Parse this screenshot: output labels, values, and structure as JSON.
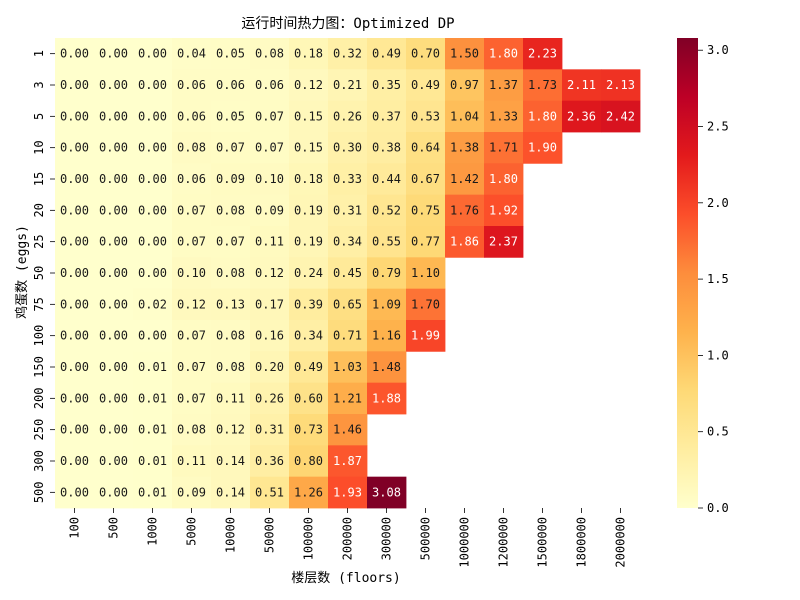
{
  "chart_data": {
    "type": "heatmap",
    "title": "运行时间热力图：Optimized DP",
    "xlabel": "楼层数 (floors)",
    "ylabel": "鸡蛋数 (eggs)",
    "x_categories": [
      "100",
      "500",
      "1000",
      "5000",
      "10000",
      "50000",
      "100000",
      "200000",
      "300000",
      "500000",
      "1000000",
      "1200000",
      "1500000",
      "1800000",
      "2000000"
    ],
    "y_categories": [
      "1",
      "3",
      "5",
      "10",
      "15",
      "20",
      "25",
      "50",
      "75",
      "100",
      "150",
      "200",
      "250",
      "300",
      "500"
    ],
    "values": [
      [
        0.0,
        0.0,
        0.0,
        0.04,
        0.05,
        0.08,
        0.18,
        0.32,
        0.49,
        0.7,
        1.5,
        1.8,
        2.23,
        null,
        null
      ],
      [
        0.0,
        0.0,
        0.0,
        0.06,
        0.06,
        0.06,
        0.12,
        0.21,
        0.35,
        0.49,
        0.97,
        1.37,
        1.73,
        2.11,
        2.13
      ],
      [
        0.0,
        0.0,
        0.0,
        0.06,
        0.05,
        0.07,
        0.15,
        0.26,
        0.37,
        0.53,
        1.04,
        1.33,
        1.8,
        2.36,
        2.42
      ],
      [
        0.0,
        0.0,
        0.0,
        0.08,
        0.07,
        0.07,
        0.15,
        0.3,
        0.38,
        0.64,
        1.38,
        1.71,
        1.9,
        null,
        null
      ],
      [
        0.0,
        0.0,
        0.0,
        0.06,
        0.09,
        0.1,
        0.18,
        0.33,
        0.44,
        0.67,
        1.42,
        1.8,
        null,
        null,
        null
      ],
      [
        0.0,
        0.0,
        0.0,
        0.07,
        0.08,
        0.09,
        0.19,
        0.31,
        0.52,
        0.75,
        1.76,
        1.92,
        null,
        null,
        null
      ],
      [
        0.0,
        0.0,
        0.0,
        0.07,
        0.07,
        0.11,
        0.19,
        0.34,
        0.55,
        0.77,
        1.86,
        2.37,
        null,
        null,
        null
      ],
      [
        0.0,
        0.0,
        0.0,
        0.1,
        0.08,
        0.12,
        0.24,
        0.45,
        0.79,
        1.1,
        null,
        null,
        null,
        null,
        null
      ],
      [
        0.0,
        0.0,
        0.02,
        0.12,
        0.13,
        0.17,
        0.39,
        0.65,
        1.09,
        1.7,
        null,
        null,
        null,
        null,
        null
      ],
      [
        0.0,
        0.0,
        0.0,
        0.07,
        0.08,
        0.16,
        0.34,
        0.71,
        1.16,
        1.99,
        null,
        null,
        null,
        null,
        null
      ],
      [
        0.0,
        0.0,
        0.01,
        0.07,
        0.08,
        0.2,
        0.49,
        1.03,
        1.48,
        null,
        null,
        null,
        null,
        null,
        null
      ],
      [
        0.0,
        0.0,
        0.01,
        0.07,
        0.11,
        0.26,
        0.6,
        1.21,
        1.88,
        null,
        null,
        null,
        null,
        null,
        null
      ],
      [
        0.0,
        0.0,
        0.01,
        0.08,
        0.12,
        0.31,
        0.73,
        1.46,
        null,
        null,
        null,
        null,
        null,
        null,
        null
      ],
      [
        0.0,
        0.0,
        0.01,
        0.11,
        0.14,
        0.36,
        0.8,
        1.87,
        null,
        null,
        null,
        null,
        null,
        null,
        null
      ],
      [
        0.0,
        0.0,
        0.01,
        0.09,
        0.14,
        0.51,
        1.26,
        1.93,
        3.08,
        null,
        null,
        null,
        null,
        null,
        null
      ]
    ],
    "colorbar": {
      "colormap": "YlOrRd",
      "range": [
        0.0,
        3.08
      ],
      "ticks": [
        "0.0",
        "0.5",
        "1.0",
        "1.5",
        "2.0",
        "2.5",
        "3.0"
      ]
    },
    "annotation_format": "0.00"
  }
}
